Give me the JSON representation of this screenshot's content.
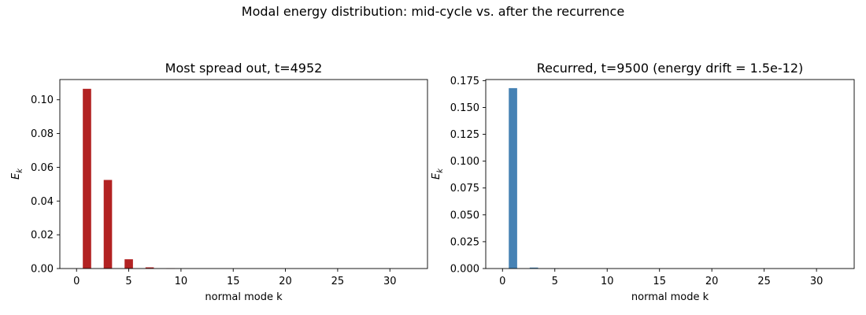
{
  "suptitle": "Modal energy distribution: mid-cycle vs. after the recurrence",
  "chart_data": [
    {
      "type": "bar",
      "title": "Most spread out, t=4952",
      "xlabel": "normal mode k",
      "ylabel": "E_k",
      "color": "#b22222",
      "xlim": [
        -1.6,
        33.6
      ],
      "ylim": [
        0,
        0.112
      ],
      "xticks": [
        0,
        5,
        10,
        15,
        20,
        25,
        30
      ],
      "yticks": [
        0.0,
        0.02,
        0.04,
        0.06,
        0.08,
        0.1
      ],
      "ytick_labels": [
        "0.00",
        "0.02",
        "0.04",
        "0.06",
        "0.08",
        "0.10"
      ],
      "x": [
        1,
        2,
        3,
        4,
        5,
        6,
        7,
        8,
        9,
        10,
        11,
        12,
        13,
        14,
        15,
        16,
        17,
        18,
        19,
        20,
        21,
        22,
        23,
        24,
        25,
        26,
        27,
        28,
        29,
        30,
        31,
        32
      ],
      "values": [
        0.1065,
        0,
        0.0525,
        0,
        0.0055,
        0,
        0.0007,
        0,
        0.0001,
        0,
        0,
        0,
        0,
        0,
        0,
        0,
        0,
        0,
        0,
        0,
        0,
        0,
        0,
        0,
        0,
        0,
        0,
        0,
        0,
        0,
        0,
        0
      ]
    },
    {
      "type": "bar",
      "title": "Recurred, t=9500 (energy drift = 1.5e-12)",
      "xlabel": "normal mode k",
      "ylabel": "E_k",
      "color": "#4682b4",
      "xlim": [
        -1.6,
        33.6
      ],
      "ylim": [
        0,
        0.176
      ],
      "xticks": [
        0,
        5,
        10,
        15,
        20,
        25,
        30
      ],
      "yticks": [
        0.0,
        0.025,
        0.05,
        0.075,
        0.1,
        0.125,
        0.15,
        0.175
      ],
      "ytick_labels": [
        "0.000",
        "0.025",
        "0.050",
        "0.075",
        "0.100",
        "0.125",
        "0.150",
        "0.175"
      ],
      "x": [
        1,
        2,
        3,
        4,
        5,
        6,
        7,
        8,
        9,
        10,
        11,
        12,
        13,
        14,
        15,
        16,
        17,
        18,
        19,
        20,
        21,
        22,
        23,
        24,
        25,
        26,
        27,
        28,
        29,
        30,
        31,
        32
      ],
      "values": [
        0.168,
        0,
        0.0009,
        0,
        0.0001,
        0,
        0,
        0,
        0,
        0,
        0,
        0,
        0,
        0,
        0,
        0,
        0,
        0,
        0,
        0,
        0,
        0,
        0,
        0,
        0,
        0,
        0,
        0,
        0,
        0,
        0,
        0
      ]
    }
  ]
}
